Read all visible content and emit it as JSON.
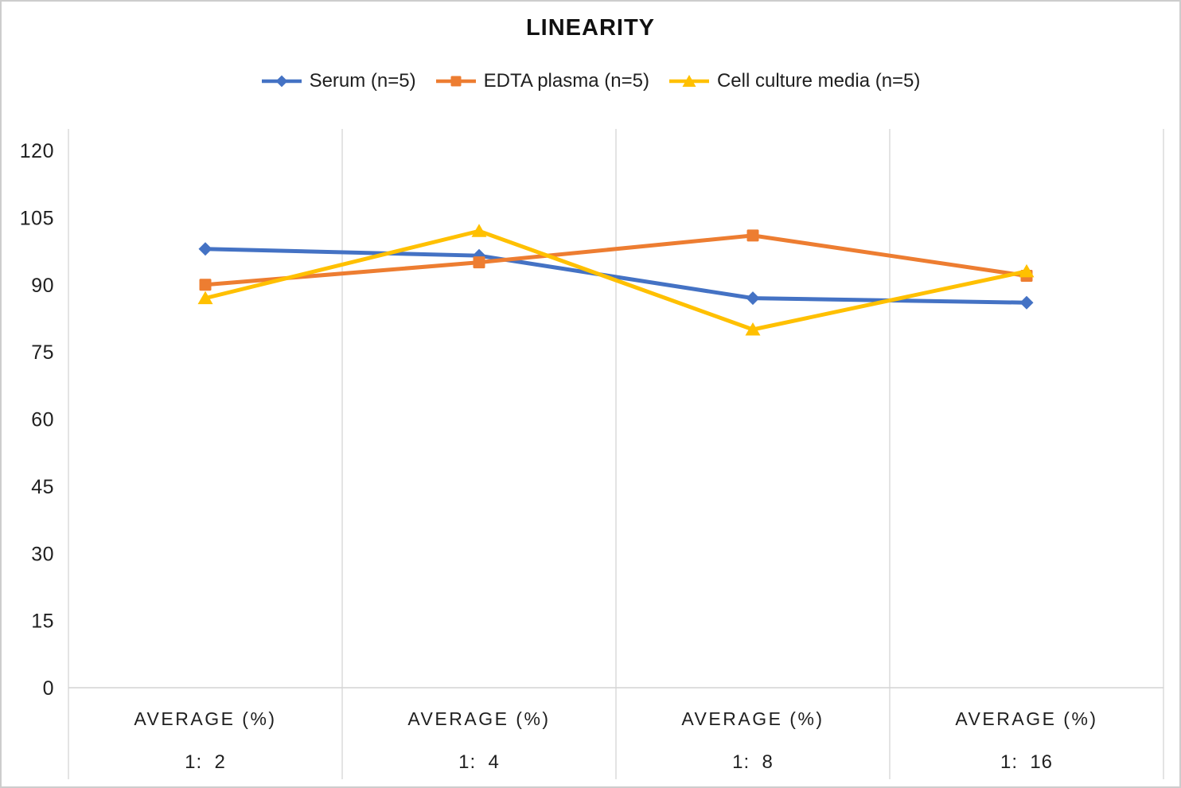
{
  "chart_data": {
    "type": "line",
    "title": "LINEARITY",
    "categories": [
      {
        "label": "AVERAGE (%)",
        "sublabel": "1:  2"
      },
      {
        "label": "AVERAGE (%)",
        "sublabel": "1:  4"
      },
      {
        "label": "AVERAGE (%)",
        "sublabel": "1:  8"
      },
      {
        "label": "AVERAGE (%)",
        "sublabel": "1:  16"
      }
    ],
    "series": [
      {
        "name": "Serum (n=5)",
        "marker": "diamond",
        "color": "#4472C4",
        "values": [
          98,
          96.5,
          87,
          86
        ]
      },
      {
        "name": "EDTA plasma (n=5)",
        "marker": "square",
        "color": "#ED7D31",
        "values": [
          90,
          95,
          101,
          92
        ]
      },
      {
        "name": "Cell culture media (n=5)",
        "marker": "triangle",
        "color": "#FFC000",
        "values": [
          87,
          102,
          80,
          93
        ]
      }
    ],
    "yticks": [
      0,
      15,
      30,
      45,
      60,
      75,
      90,
      105,
      120
    ],
    "ylim": [
      0,
      120
    ],
    "xlabel": "",
    "ylabel": "",
    "grid": "vertical-category-separators-only",
    "legend_position": "top",
    "gridline_color": "#d9d9d9",
    "axis_line_color": "#d3d3d3",
    "text_color": "#1f1f1f"
  }
}
